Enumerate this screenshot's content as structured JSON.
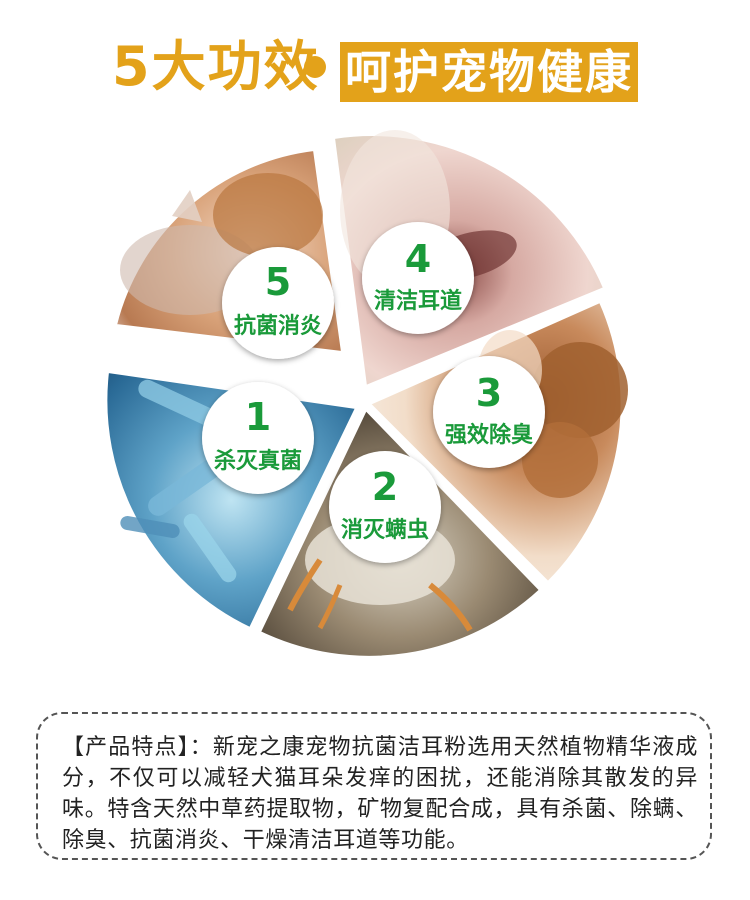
{
  "title": {
    "left": "5大功效",
    "right": "呵护宠物健康"
  },
  "colors": {
    "gold": "#e3a21a",
    "green": "#1a9a3a"
  },
  "segments": [
    {
      "number": "5",
      "label": "抗菌消炎",
      "image": "sleeping-cat-and-dog"
    },
    {
      "number": "4",
      "label": "清洁耳道",
      "image": "pet-ear-closeup"
    },
    {
      "number": "3",
      "label": "强效除臭",
      "image": "woman-with-poodle"
    },
    {
      "number": "2",
      "label": "消灭螨虫",
      "image": "ear-mite-microscope"
    },
    {
      "number": "1",
      "label": "杀灭真菌",
      "image": "bacteria-microscope"
    }
  ],
  "description": "【产品特点】：新宠之康宠物抗菌洁耳粉选用天然植物精华液成分，不仅可以减轻犬猫耳朵发痒的困扰，还能消除其散发的异味。特含天然中草药提取物，矿物复配合成，具有杀菌、除螨、除臭、抗菌消炎、干燥清洁耳道等功能。"
}
